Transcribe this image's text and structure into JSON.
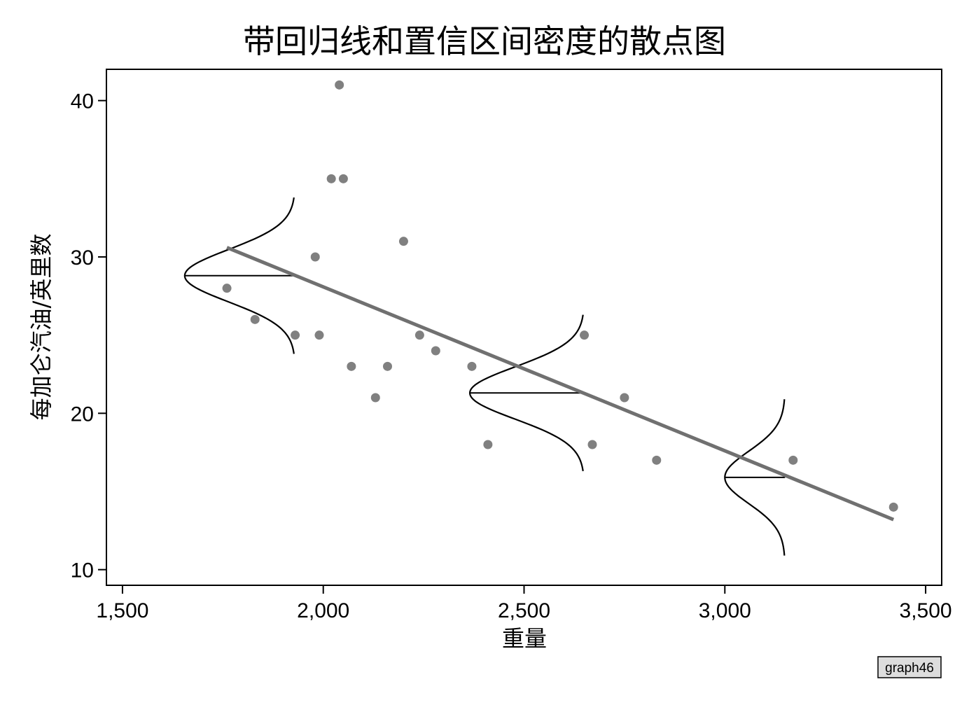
{
  "chart_data": {
    "type": "scatter",
    "title": "带回归线和置信区间密度的散点图",
    "xlabel": "重量",
    "ylabel": "每加仑汽油/英里数",
    "xlim": [
      1460,
      3540
    ],
    "ylim": [
      9.0,
      42.0
    ],
    "x_ticks": [
      1500,
      2000,
      2500,
      3000,
      3500
    ],
    "x_tick_labels": [
      "1,500",
      "2,000",
      "2,500",
      "3,000",
      "3,500"
    ],
    "y_ticks": [
      10,
      20,
      30,
      40
    ],
    "y_tick_labels": [
      "10",
      "20",
      "30",
      "40"
    ],
    "grid": false,
    "legend": "none",
    "colors": {
      "points": "#808080",
      "fit_line": "#707070",
      "density": "#000000",
      "axes": "#000000"
    },
    "points": [
      {
        "x": 1760,
        "y": 28
      },
      {
        "x": 1830,
        "y": 26
      },
      {
        "x": 1930,
        "y": 25
      },
      {
        "x": 1980,
        "y": 30
      },
      {
        "x": 1990,
        "y": 25
      },
      {
        "x": 2020,
        "y": 35
      },
      {
        "x": 2040,
        "y": 41
      },
      {
        "x": 2050,
        "y": 35
      },
      {
        "x": 2070,
        "y": 23
      },
      {
        "x": 2130,
        "y": 21
      },
      {
        "x": 2160,
        "y": 23
      },
      {
        "x": 2200,
        "y": 31
      },
      {
        "x": 2240,
        "y": 25
      },
      {
        "x": 2280,
        "y": 24
      },
      {
        "x": 2370,
        "y": 23
      },
      {
        "x": 2410,
        "y": 18
      },
      {
        "x": 2650,
        "y": 25
      },
      {
        "x": 2670,
        "y": 18
      },
      {
        "x": 2750,
        "y": 21
      },
      {
        "x": 2830,
        "y": 17
      },
      {
        "x": 3170,
        "y": 17
      },
      {
        "x": 3420,
        "y": 14
      }
    ],
    "fit_line": {
      "x": [
        1760,
        3420
      ],
      "y": [
        30.6,
        13.2
      ]
    },
    "densities": [
      {
        "at_x": 1930,
        "center_y": 28.8,
        "y_range": [
          23.8,
          33.8
        ],
        "peak_x": 1655
      },
      {
        "at_x": 2650,
        "center_y": 21.3,
        "y_range": [
          16.3,
          26.3
        ],
        "peak_x": 2365
      },
      {
        "at_x": 3150,
        "center_y": 15.9,
        "y_range": [
          10.9,
          20.9
        ],
        "peak_x": 3000
      }
    ]
  },
  "note_label": "graph46"
}
